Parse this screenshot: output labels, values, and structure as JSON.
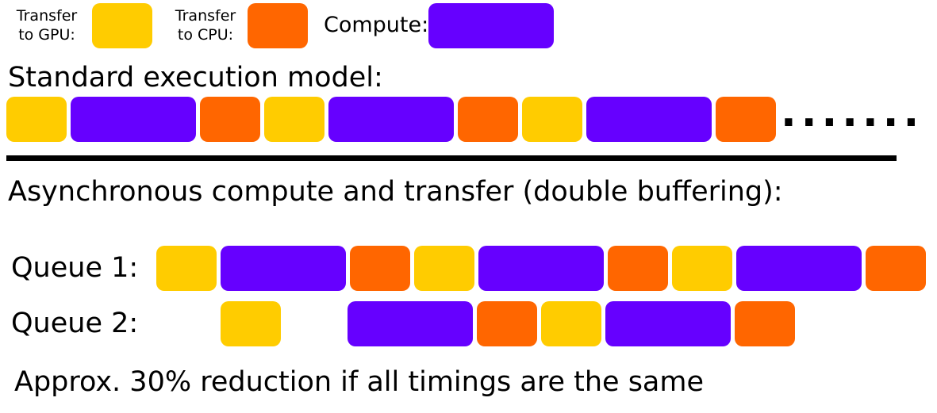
{
  "colors": {
    "transfer_to_gpu": "#ffcc00",
    "transfer_to_cpu": "#ff6600",
    "compute": "#6600ff"
  },
  "legend": {
    "gpu_line1": "Transfer",
    "gpu_line2": "to GPU:",
    "cpu_line1": "Transfer",
    "cpu_line2": "to CPU:",
    "compute_label": "Compute:"
  },
  "standard": {
    "heading": "Standard execution model:",
    "sequence": [
      "transfer_to_gpu",
      "compute",
      "transfer_to_cpu",
      "transfer_to_gpu",
      "compute",
      "transfer_to_cpu",
      "transfer_to_gpu",
      "compute",
      "transfer_to_cpu"
    ],
    "continuation": "......."
  },
  "async": {
    "heading": "Asynchronous compute and transfer (double buffering):",
    "queue1_label": "Queue 1:",
    "queue2_label": "Queue 2:",
    "queue1_sequence": [
      "transfer_to_gpu",
      "compute",
      "transfer_to_cpu",
      "transfer_to_gpu",
      "compute",
      "transfer_to_cpu",
      "transfer_to_gpu",
      "compute",
      "transfer_to_cpu"
    ],
    "queue2_sequence": [
      "transfer_to_gpu",
      "compute",
      "transfer_to_cpu",
      "transfer_to_gpu",
      "compute",
      "transfer_to_cpu"
    ]
  },
  "footer": "Approx. 30% reduction if all timings are the same"
}
